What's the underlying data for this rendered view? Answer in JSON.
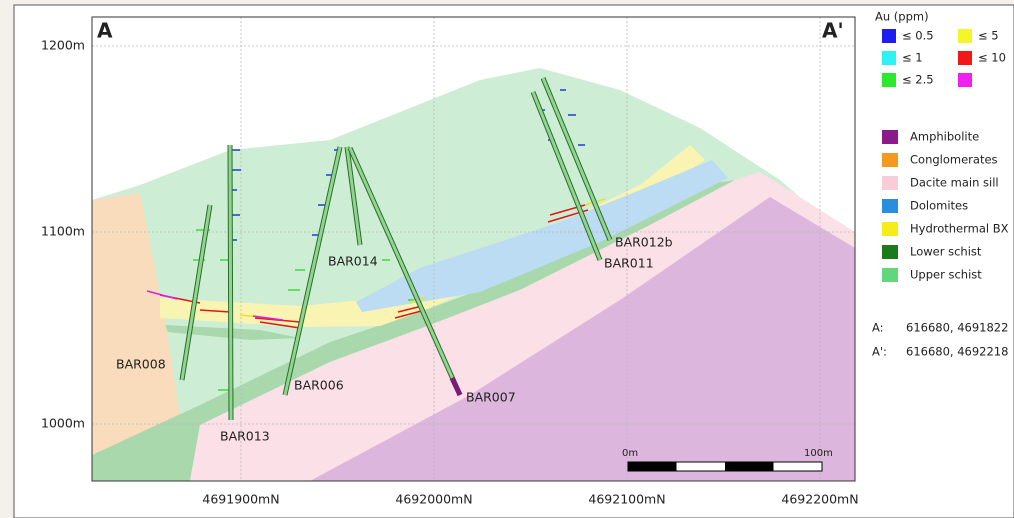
{
  "section": {
    "start_label": "A",
    "end_label": "A'"
  },
  "axes": {
    "y_labels": [
      "1200m",
      "1100m",
      "1000m"
    ],
    "x_labels": [
      "4691900mN",
      "4692000mN",
      "4692100mN",
      "4692200mN"
    ]
  },
  "drillholes": [
    "BAR008",
    "BAR013",
    "BAR006",
    "BAR014",
    "BAR007",
    "BAR012b",
    "BAR011"
  ],
  "scale_bar": {
    "start": "0m",
    "end": "100m"
  },
  "legend": {
    "au_title": "Au (ppm)",
    "au_classes": [
      "≤ 0.5",
      "≤ 1",
      "≤ 2.5",
      "≤ 5",
      "≤ 10"
    ],
    "lithology": [
      "Amphibolite",
      "Conglomerates",
      "Dacite main sill",
      "Dolomites",
      "Hydrothermal BX",
      "Lower schist",
      "Upper schist"
    ],
    "coordinates": [
      {
        "label": "A:",
        "value": "616680, 4691822"
      },
      {
        "label": "A':",
        "value": "616680, 4692218"
      }
    ]
  }
}
